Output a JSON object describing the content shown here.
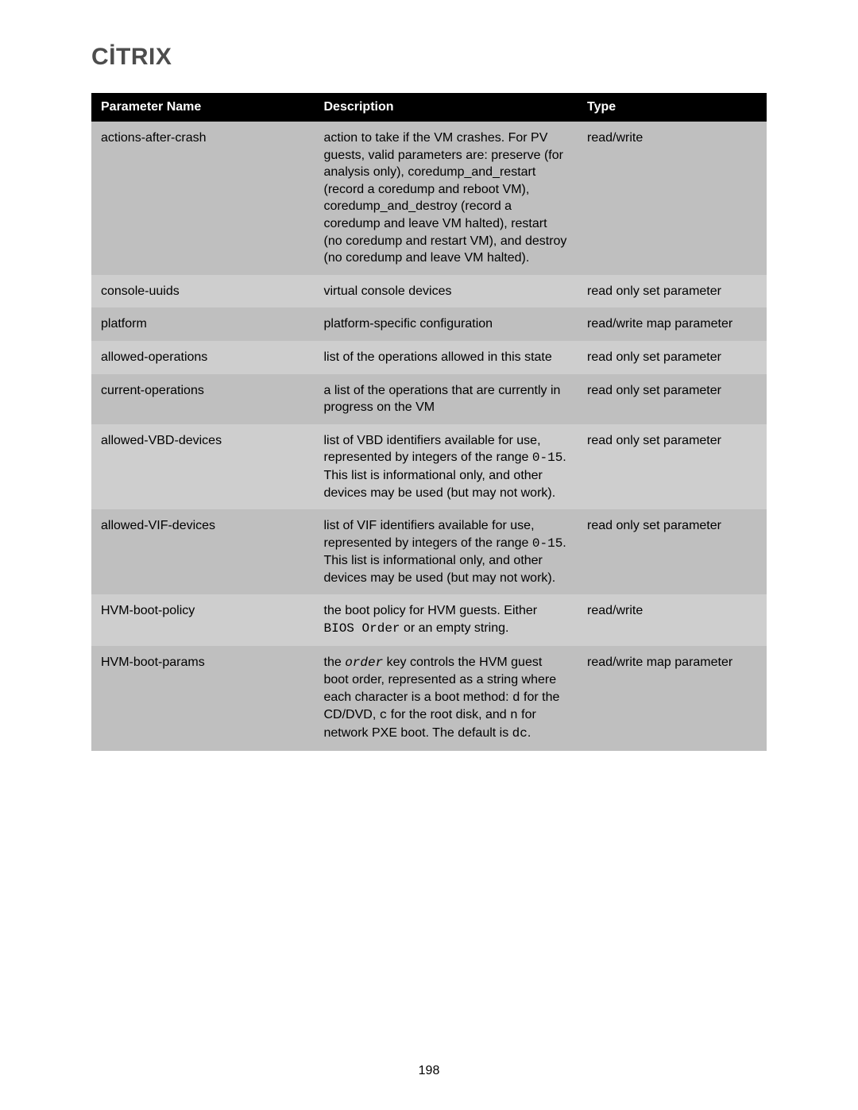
{
  "page_number": "198",
  "logo_text": "CİTRIX",
  "table": {
    "headers": {
      "param": "Parameter Name",
      "desc": "Description",
      "type": "Type"
    },
    "row_colors": {
      "a": "#bfbfbf",
      "b": "#cecece"
    },
    "header_bg": "#000000",
    "header_fg": "#ffffff",
    "fontsize_header": 16,
    "fontsize_body": 16,
    "rows": [
      {
        "param": "actions-after-crash",
        "desc_plain": "action to take if the VM crashes. For PV guests, valid parameters are: preserve (for analysis only), coredump_and_restart (record a coredump and reboot VM), coredump_and_destroy (record a coredump and leave VM halted), restart (no coredump and restart VM), and destroy (no coredump and leave VM halted).",
        "type": "read/write"
      },
      {
        "param": "console-uuids",
        "desc_plain": "virtual console devices",
        "type": "read only set parameter"
      },
      {
        "param": "platform",
        "desc_plain": "platform-specific configuration",
        "type": "read/write map parameter"
      },
      {
        "param": "allowed-operations",
        "desc_plain": "list of the operations allowed in this state",
        "type": "read only set parameter"
      },
      {
        "param": "current-operations",
        "desc_plain": "a list of the operations that are currently in progress on the VM",
        "type": "read only set parameter"
      },
      {
        "param": "allowed-VBD-devices",
        "desc_segments": [
          {
            "t": "list of VBD identifiers available for use, represented by integers of the range "
          },
          {
            "t": "0-15",
            "mono": true
          },
          {
            "t": ". This list is informational only, and other devices may be used (but may not work)."
          }
        ],
        "type": "read only set parameter"
      },
      {
        "param": "allowed-VIF-devices",
        "desc_segments": [
          {
            "t": "list of VIF identifiers available for use, represented by integers of the range "
          },
          {
            "t": "0-15",
            "mono": true
          },
          {
            "t": ". This list is informational only, and other devices may be used (but may not work)."
          }
        ],
        "type": "read only set parameter"
      },
      {
        "param": "HVM-boot-policy",
        "desc_segments": [
          {
            "t": "the boot policy for HVM guests. Either "
          },
          {
            "t": "BIOS Order",
            "mono": true
          },
          {
            "t": " or an empty string."
          }
        ],
        "type": "read/write"
      },
      {
        "param": "HVM-boot-params",
        "desc_segments": [
          {
            "t": "the "
          },
          {
            "t": "order",
            "mono_italic": true
          },
          {
            "t": " key controls the HVM guest boot order, represented as a string where each character is a boot method: "
          },
          {
            "t": "d",
            "mono": true
          },
          {
            "t": " for the CD/DVD, "
          },
          {
            "t": "c",
            "mono": true
          },
          {
            "t": " for the root disk, and "
          },
          {
            "t": "n",
            "mono": true
          },
          {
            "t": " for network PXE boot. The default is "
          },
          {
            "t": "dc",
            "mono": true
          },
          {
            "t": "."
          }
        ],
        "type": "read/write map parameter"
      }
    ]
  }
}
